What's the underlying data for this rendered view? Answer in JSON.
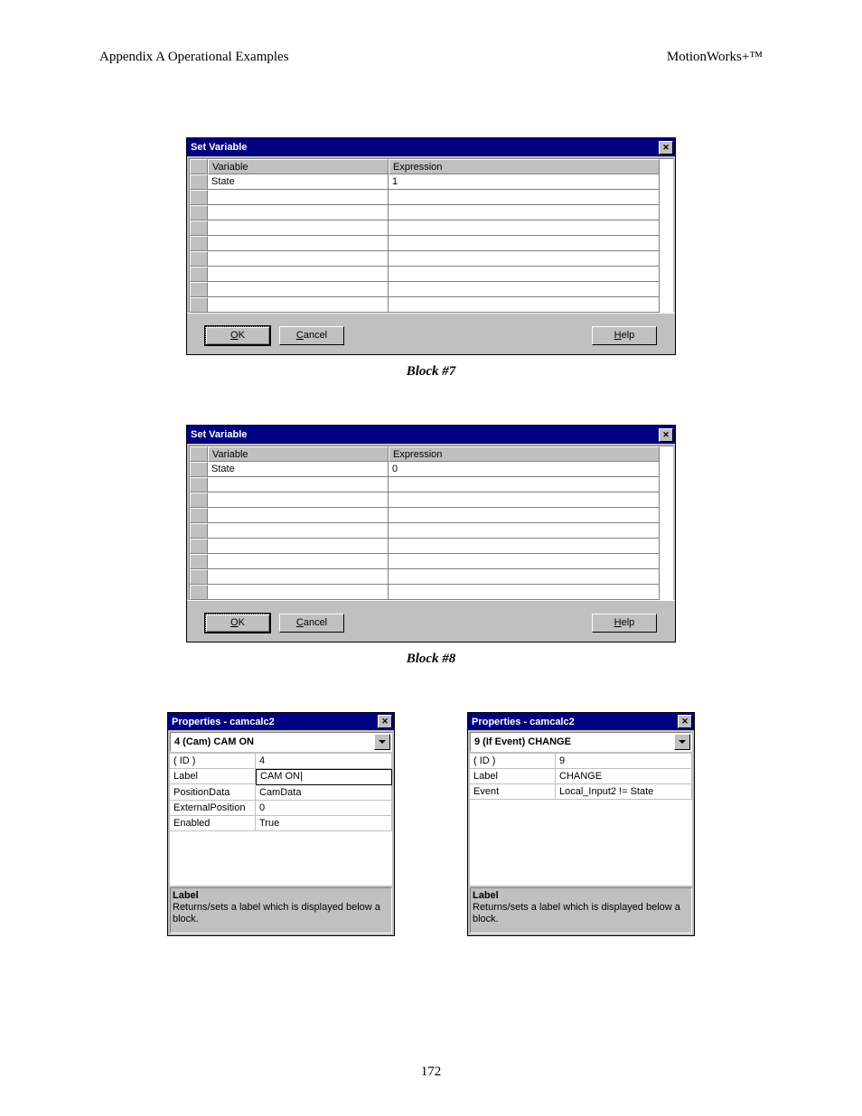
{
  "page": {
    "header_left": "Appendix A  Operational Examples",
    "header_right": "MotionWorks+™",
    "footer_page_number": "172"
  },
  "dialog1": {
    "title": "Set Variable",
    "col_variable": "Variable",
    "col_expression": "Expression",
    "rows": [
      {
        "variable": "State",
        "expression": "1"
      },
      {
        "variable": "",
        "expression": ""
      },
      {
        "variable": "",
        "expression": ""
      },
      {
        "variable": "",
        "expression": ""
      },
      {
        "variable": "",
        "expression": ""
      },
      {
        "variable": "",
        "expression": ""
      },
      {
        "variable": "",
        "expression": ""
      },
      {
        "variable": "",
        "expression": ""
      },
      {
        "variable": "",
        "expression": ""
      }
    ],
    "btn_ok": "OK",
    "btn_cancel": "Cancel",
    "btn_help": "Help",
    "caption": "Block #7"
  },
  "dialog2": {
    "title": "Set Variable",
    "col_variable": "Variable",
    "col_expression": "Expression",
    "rows": [
      {
        "variable": "State",
        "expression": "0"
      },
      {
        "variable": "",
        "expression": ""
      },
      {
        "variable": "",
        "expression": ""
      },
      {
        "variable": "",
        "expression": ""
      },
      {
        "variable": "",
        "expression": ""
      },
      {
        "variable": "",
        "expression": ""
      },
      {
        "variable": "",
        "expression": ""
      },
      {
        "variable": "",
        "expression": ""
      },
      {
        "variable": "",
        "expression": ""
      }
    ],
    "btn_ok": "OK",
    "btn_cancel": "Cancel",
    "btn_help": "Help",
    "caption": "Block #8"
  },
  "props1": {
    "title": "Properties - camcalc2",
    "dropdown": "4 (Cam) CAM ON",
    "rows": [
      {
        "k": "( ID )",
        "v": "4"
      },
      {
        "k": "Label",
        "v": "CAM ON"
      },
      {
        "k": "PositionData",
        "v": "CamData"
      },
      {
        "k": "ExternalPosition",
        "v": "0"
      },
      {
        "k": "Enabled",
        "v": "True"
      }
    ],
    "editing_row_index": 1,
    "desc_title": "Label",
    "desc_body": "Returns/sets a label which is displayed below a block."
  },
  "props2": {
    "title": "Properties - camcalc2",
    "dropdown": "9 (If Event) CHANGE",
    "rows": [
      {
        "k": "( ID )",
        "v": "9"
      },
      {
        "k": "Label",
        "v": "CHANGE"
      },
      {
        "k": "Event",
        "v": "Local_Input2 != State"
      }
    ],
    "editing_row_index": -1,
    "desc_title": "Label",
    "desc_body": "Returns/sets a label which is displayed below a block."
  }
}
